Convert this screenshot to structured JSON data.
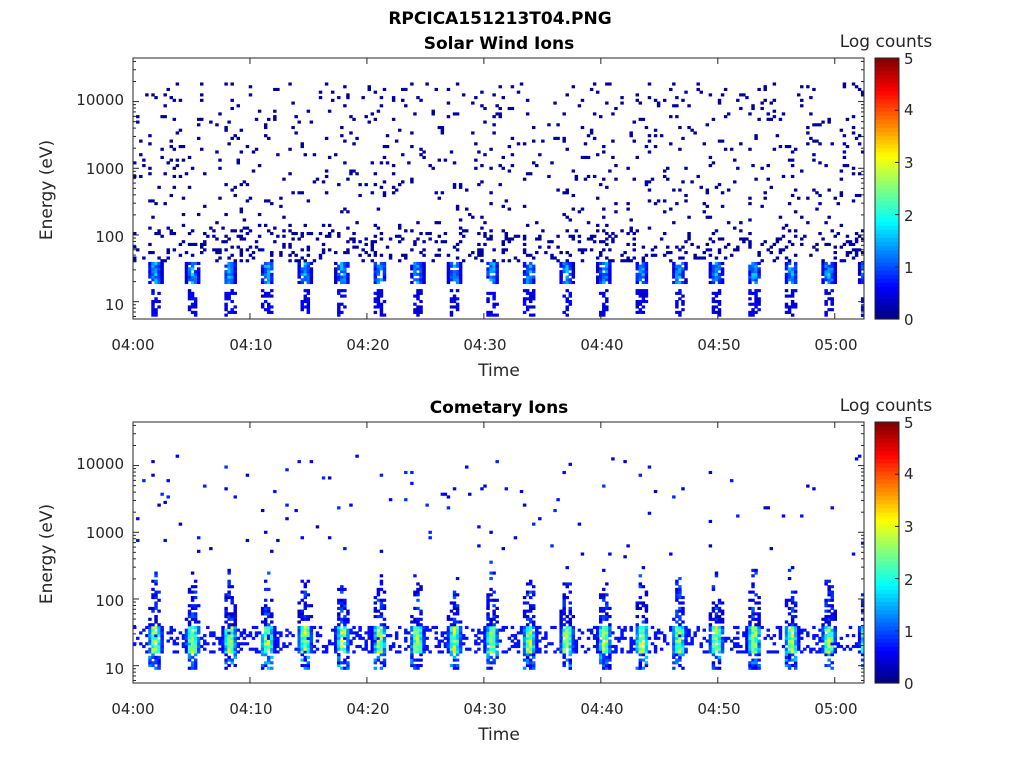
{
  "figure": {
    "title": "RPCICA151213T04.PNG"
  },
  "chart_data": [
    {
      "type": "heatmap",
      "title": "Solar Wind Ions",
      "xlabel": "Time",
      "ylabel": "Energy (eV)",
      "x_ticks": [
        "04:00",
        "04:10",
        "04:20",
        "04:30",
        "04:40",
        "04:50",
        "05:00"
      ],
      "y_ticks": [
        "10",
        "100",
        "1000",
        "10000"
      ],
      "xlim_minutes": [
        0,
        62.5
      ],
      "ylim_ev": [
        5.5,
        45000
      ],
      "y_scale": "log",
      "colorbar": {
        "label": "Log counts",
        "range": [
          0,
          5
        ],
        "ticks": [
          "0",
          "1",
          "2",
          "3",
          "4",
          "5"
        ],
        "colormap": "jet"
      },
      "cycle_period_minutes": 3.2,
      "features": {
        "band_ev": [
          18,
          40
        ],
        "band_peak_log_counts": 1.8,
        "low_energy_streaks_ev": [
          6,
          15
        ],
        "background_ev": [
          40,
          20000
        ],
        "background_log_counts": 0.15
      }
    },
    {
      "type": "heatmap",
      "title": "Cometary Ions",
      "xlabel": "Time",
      "ylabel": "Energy (eV)",
      "x_ticks": [
        "04:00",
        "04:10",
        "04:20",
        "04:30",
        "04:40",
        "04:50",
        "05:00"
      ],
      "y_ticks": [
        "10",
        "100",
        "1000",
        "10000"
      ],
      "xlim_minutes": [
        0,
        62.5
      ],
      "ylim_ev": [
        5.5,
        45000
      ],
      "y_scale": "log",
      "colorbar": {
        "label": "Log counts",
        "range": [
          0,
          5
        ],
        "ticks": [
          "0",
          "1",
          "2",
          "3",
          "4",
          "5"
        ],
        "colormap": "jet"
      },
      "cycle_period_minutes": 3.2,
      "features": {
        "band_ev": [
          15,
          38
        ],
        "band_peak_log_counts": 3.3,
        "spikes_ev": [
          38,
          400
        ],
        "sparse_high_energy_ev": [
          400,
          15000
        ]
      }
    }
  ]
}
